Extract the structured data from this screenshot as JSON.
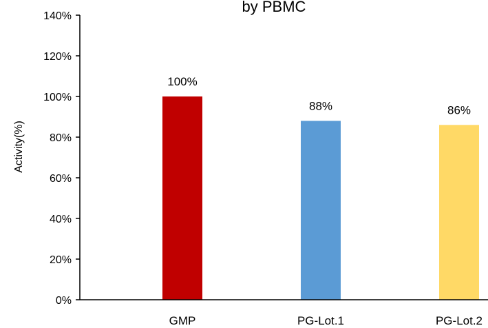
{
  "chart_data": {
    "type": "bar",
    "title": "by  PBMC",
    "xlabel": "",
    "ylabel": "Activity(%)",
    "categories": [
      "GMP",
      "PG-Lot.1",
      "PG-Lot.2"
    ],
    "values": [
      100,
      88,
      86
    ],
    "data_labels": [
      "100%",
      "88%",
      "86%"
    ],
    "colors": [
      "#C00000",
      "#5B9BD5",
      "#FFD966"
    ],
    "ylim": [
      0,
      140
    ],
    "yticks": [
      0,
      20,
      40,
      60,
      80,
      100,
      120,
      140
    ],
    "ytick_labels": [
      "0%",
      "20%",
      "40%",
      "60%",
      "80%",
      "100%",
      "120%",
      "140%"
    ],
    "grid": false,
    "legend": "none"
  }
}
